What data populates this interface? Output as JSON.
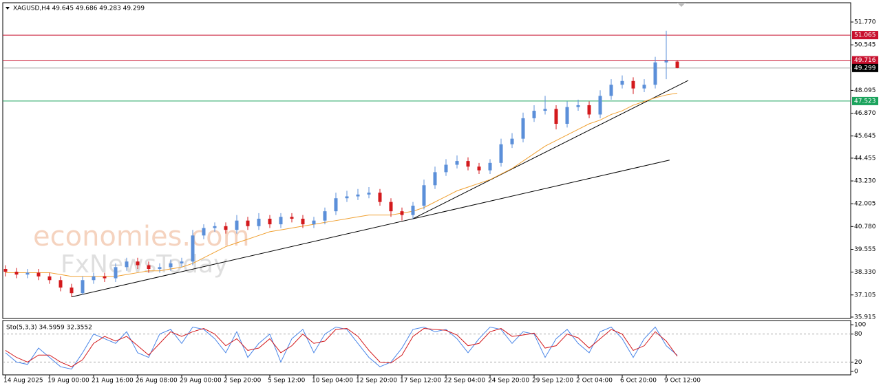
{
  "chart_data": {
    "type": "candlestick",
    "title": "XAGUSD,H4  49.645 49.686 49.283 49.299",
    "categories": [
      "14 Aug 2025",
      null,
      null,
      null,
      "19 Aug 00:00",
      null,
      null,
      null,
      "21 Aug 16:00",
      null,
      null,
      null,
      "26 Aug 08:00",
      null,
      null,
      null,
      "29 Aug 00:00",
      null,
      null,
      null,
      "2 Sep 20:00",
      null,
      null,
      null,
      "5 Sep 12:00",
      null,
      null,
      null,
      "10 Sep 04:00",
      null,
      null,
      null,
      "12 Sep 20:00",
      null,
      null,
      null,
      "17 Sep 12:00",
      null,
      null,
      null,
      "22 Sep 04:00",
      null,
      null,
      null,
      "24 Sep 20:00",
      null,
      null,
      null,
      "29 Sep 12:00",
      null,
      null,
      null,
      "2 Oct 04:00",
      null,
      null,
      null,
      "6 Oct 20:00",
      null,
      null,
      null,
      "9 Oct 12:00",
      null
    ],
    "open": [
      38.5,
      38.35,
      38.2,
      38.3,
      38.1,
      37.9,
      37.5,
      37.2,
      37.9,
      38.1,
      38.0,
      38.6,
      38.9,
      38.7,
      38.5,
      38.6,
      38.8,
      38.9,
      40.3,
      40.7,
      40.8,
      40.6,
      41.1,
      40.8,
      41.2,
      40.9,
      41.3,
      41.2,
      40.9,
      41.1,
      41.6,
      42.3,
      42.4,
      42.5,
      42.6,
      42.1,
      41.6,
      41.4,
      41.9,
      43.0,
      43.7,
      44.1,
      44.3,
      44.0,
      43.8,
      44.2,
      45.2,
      45.5,
      46.6,
      47.0,
      47.1,
      46.3,
      47.2,
      47.3,
      46.8,
      47.8,
      48.4,
      48.6,
      48.2,
      48.4,
      49.6,
      49.645
    ],
    "high": [
      38.7,
      38.55,
      38.5,
      38.5,
      38.3,
      38.1,
      37.7,
      38.1,
      38.3,
      38.3,
      38.8,
      39.1,
      39.1,
      38.9,
      38.8,
      39.0,
      39.1,
      40.6,
      40.9,
      41.0,
      41.0,
      41.4,
      41.3,
      41.5,
      41.4,
      41.5,
      41.5,
      41.4,
      41.3,
      41.8,
      42.6,
      42.7,
      42.8,
      42.9,
      42.8,
      42.3,
      41.8,
      42.1,
      43.3,
      44.0,
      44.4,
      44.6,
      44.5,
      44.2,
      44.4,
      45.5,
      45.8,
      46.9,
      47.3,
      47.8,
      47.3,
      47.5,
      47.6,
      47.5,
      48.1,
      48.7,
      48.9,
      48.8,
      48.7,
      49.9,
      51.3,
      49.686
    ],
    "low": [
      38.1,
      38.0,
      38.0,
      37.9,
      37.7,
      37.3,
      37.0,
      37.1,
      37.7,
      37.8,
      37.8,
      38.4,
      38.5,
      38.3,
      38.3,
      38.4,
      38.6,
      38.7,
      40.1,
      40.5,
      40.4,
      40.4,
      40.6,
      40.6,
      40.7,
      40.7,
      41.0,
      40.7,
      40.7,
      40.9,
      41.4,
      42.1,
      42.2,
      42.3,
      41.9,
      41.3,
      41.1,
      41.2,
      41.7,
      42.8,
      43.5,
      43.9,
      43.8,
      43.6,
      43.6,
      44.0,
      45.0,
      45.3,
      46.4,
      46.8,
      46.0,
      46.1,
      47.0,
      46.6,
      46.6,
      47.6,
      48.2,
      47.9,
      48.0,
      48.2,
      48.7,
      49.283
    ],
    "close": [
      38.35,
      38.2,
      38.3,
      38.1,
      37.9,
      37.5,
      37.2,
      37.9,
      38.1,
      38.0,
      38.6,
      38.9,
      38.7,
      38.5,
      38.6,
      38.8,
      38.9,
      40.3,
      40.7,
      40.8,
      40.6,
      41.1,
      40.8,
      41.2,
      40.9,
      41.3,
      41.2,
      40.9,
      41.1,
      41.6,
      42.3,
      42.4,
      42.5,
      42.6,
      42.1,
      41.6,
      41.4,
      41.9,
      43.0,
      43.7,
      44.1,
      44.3,
      44.0,
      43.8,
      44.2,
      45.2,
      45.5,
      46.6,
      47.0,
      47.1,
      46.3,
      47.2,
      47.3,
      46.8,
      47.8,
      48.4,
      48.6,
      48.2,
      48.4,
      49.6,
      49.7,
      49.299
    ],
    "up_color": "#5b8fd9",
    "down_color": "#d3191c",
    "ma": {
      "color": "#f0a030",
      "values": [
        38.3,
        38.3,
        38.3,
        38.3,
        38.3,
        38.2,
        38.1,
        38.1,
        38.1,
        38.1,
        38.1,
        38.2,
        38.3,
        38.4,
        38.4,
        38.5,
        38.6,
        38.8,
        39.1,
        39.4,
        39.7,
        39.9,
        40.1,
        40.3,
        40.5,
        40.6,
        40.7,
        40.8,
        40.9,
        41.0,
        41.1,
        41.2,
        41.3,
        41.4,
        41.4,
        41.4,
        41.5,
        41.6,
        41.8,
        42.1,
        42.4,
        42.7,
        42.9,
        43.1,
        43.3,
        43.6,
        43.9,
        44.3,
        44.7,
        45.1,
        45.4,
        45.7,
        46.0,
        46.3,
        46.5,
        46.8,
        47.0,
        47.3,
        47.5,
        47.7,
        47.85,
        47.95
      ]
    },
    "trendlines": [
      {
        "x": [
          6,
          60.3
        ],
        "y": [
          37.0,
          44.35
        ]
      },
      {
        "x": [
          37,
          62
        ],
        "y": [
          41.2,
          48.63
        ]
      }
    ],
    "levels": [
      {
        "value": 51.065,
        "color": "#c8102e"
      },
      {
        "value": 49.716,
        "color": "#c8102e"
      },
      {
        "value": 49.299,
        "color": "#000000"
      },
      {
        "value": 47.523,
        "color": "#1aa35c"
      }
    ],
    "ylim": [
      35.84,
      52.805
    ],
    "yticks": [
      {
        "value": 51.77,
        "label": "51.770"
      },
      {
        "value": 50.545,
        "label": "50.545"
      },
      {
        "value": 48.095,
        "label": "48.095"
      },
      {
        "value": 46.87,
        "label": "46.870"
      },
      {
        "value": 45.645,
        "label": "45.645"
      },
      44.455,
      {
        "value": 43.23,
        "label": "43.230"
      },
      42.005,
      {
        "value": 40.78,
        "label": "40.780"
      },
      39.555,
      {
        "value": 38.33,
        "label": "38.330"
      },
      37.105,
      35.915
    ],
    "watermarks": [
      "economies.com",
      "FxNewsToday"
    ],
    "indicator": {
      "type": "line",
      "title": "Sto(5,3,3) 34.5959 32.3552",
      "ylim": [
        -7.4,
        109
      ],
      "yticks": [
        100,
        80,
        20,
        0
      ],
      "levels": [
        80,
        20
      ],
      "series": [
        {
          "color": "#4a86e8",
          "values": [
            40,
            20,
            15,
            50,
            30,
            10,
            5,
            40,
            80,
            70,
            60,
            85,
            40,
            30,
            80,
            90,
            60,
            95,
            90,
            70,
            40,
            85,
            30,
            60,
            80,
            20,
            70,
            90,
            40,
            80,
            95,
            90,
            60,
            30,
            10,
            20,
            50,
            90,
            95,
            85,
            90,
            70,
            40,
            70,
            95,
            90,
            60,
            85,
            80,
            30,
            70,
            90,
            60,
            40,
            85,
            95,
            70,
            30,
            70,
            95,
            55,
            34.5959
          ]
        },
        {
          "color": "#d3191c",
          "values": [
            45,
            30,
            20,
            35,
            35,
            20,
            10,
            25,
            60,
            75,
            65,
            75,
            55,
            35,
            60,
            85,
            75,
            85,
            92,
            80,
            55,
            70,
            45,
            50,
            70,
            40,
            55,
            80,
            60,
            65,
            90,
            92,
            75,
            45,
            20,
            18,
            35,
            75,
            92,
            90,
            88,
            78,
            55,
            60,
            85,
            92,
            75,
            78,
            82,
            50,
            55,
            80,
            72,
            50,
            70,
            90,
            80,
            45,
            55,
            85,
            65,
            32.3552
          ]
        }
      ]
    }
  }
}
